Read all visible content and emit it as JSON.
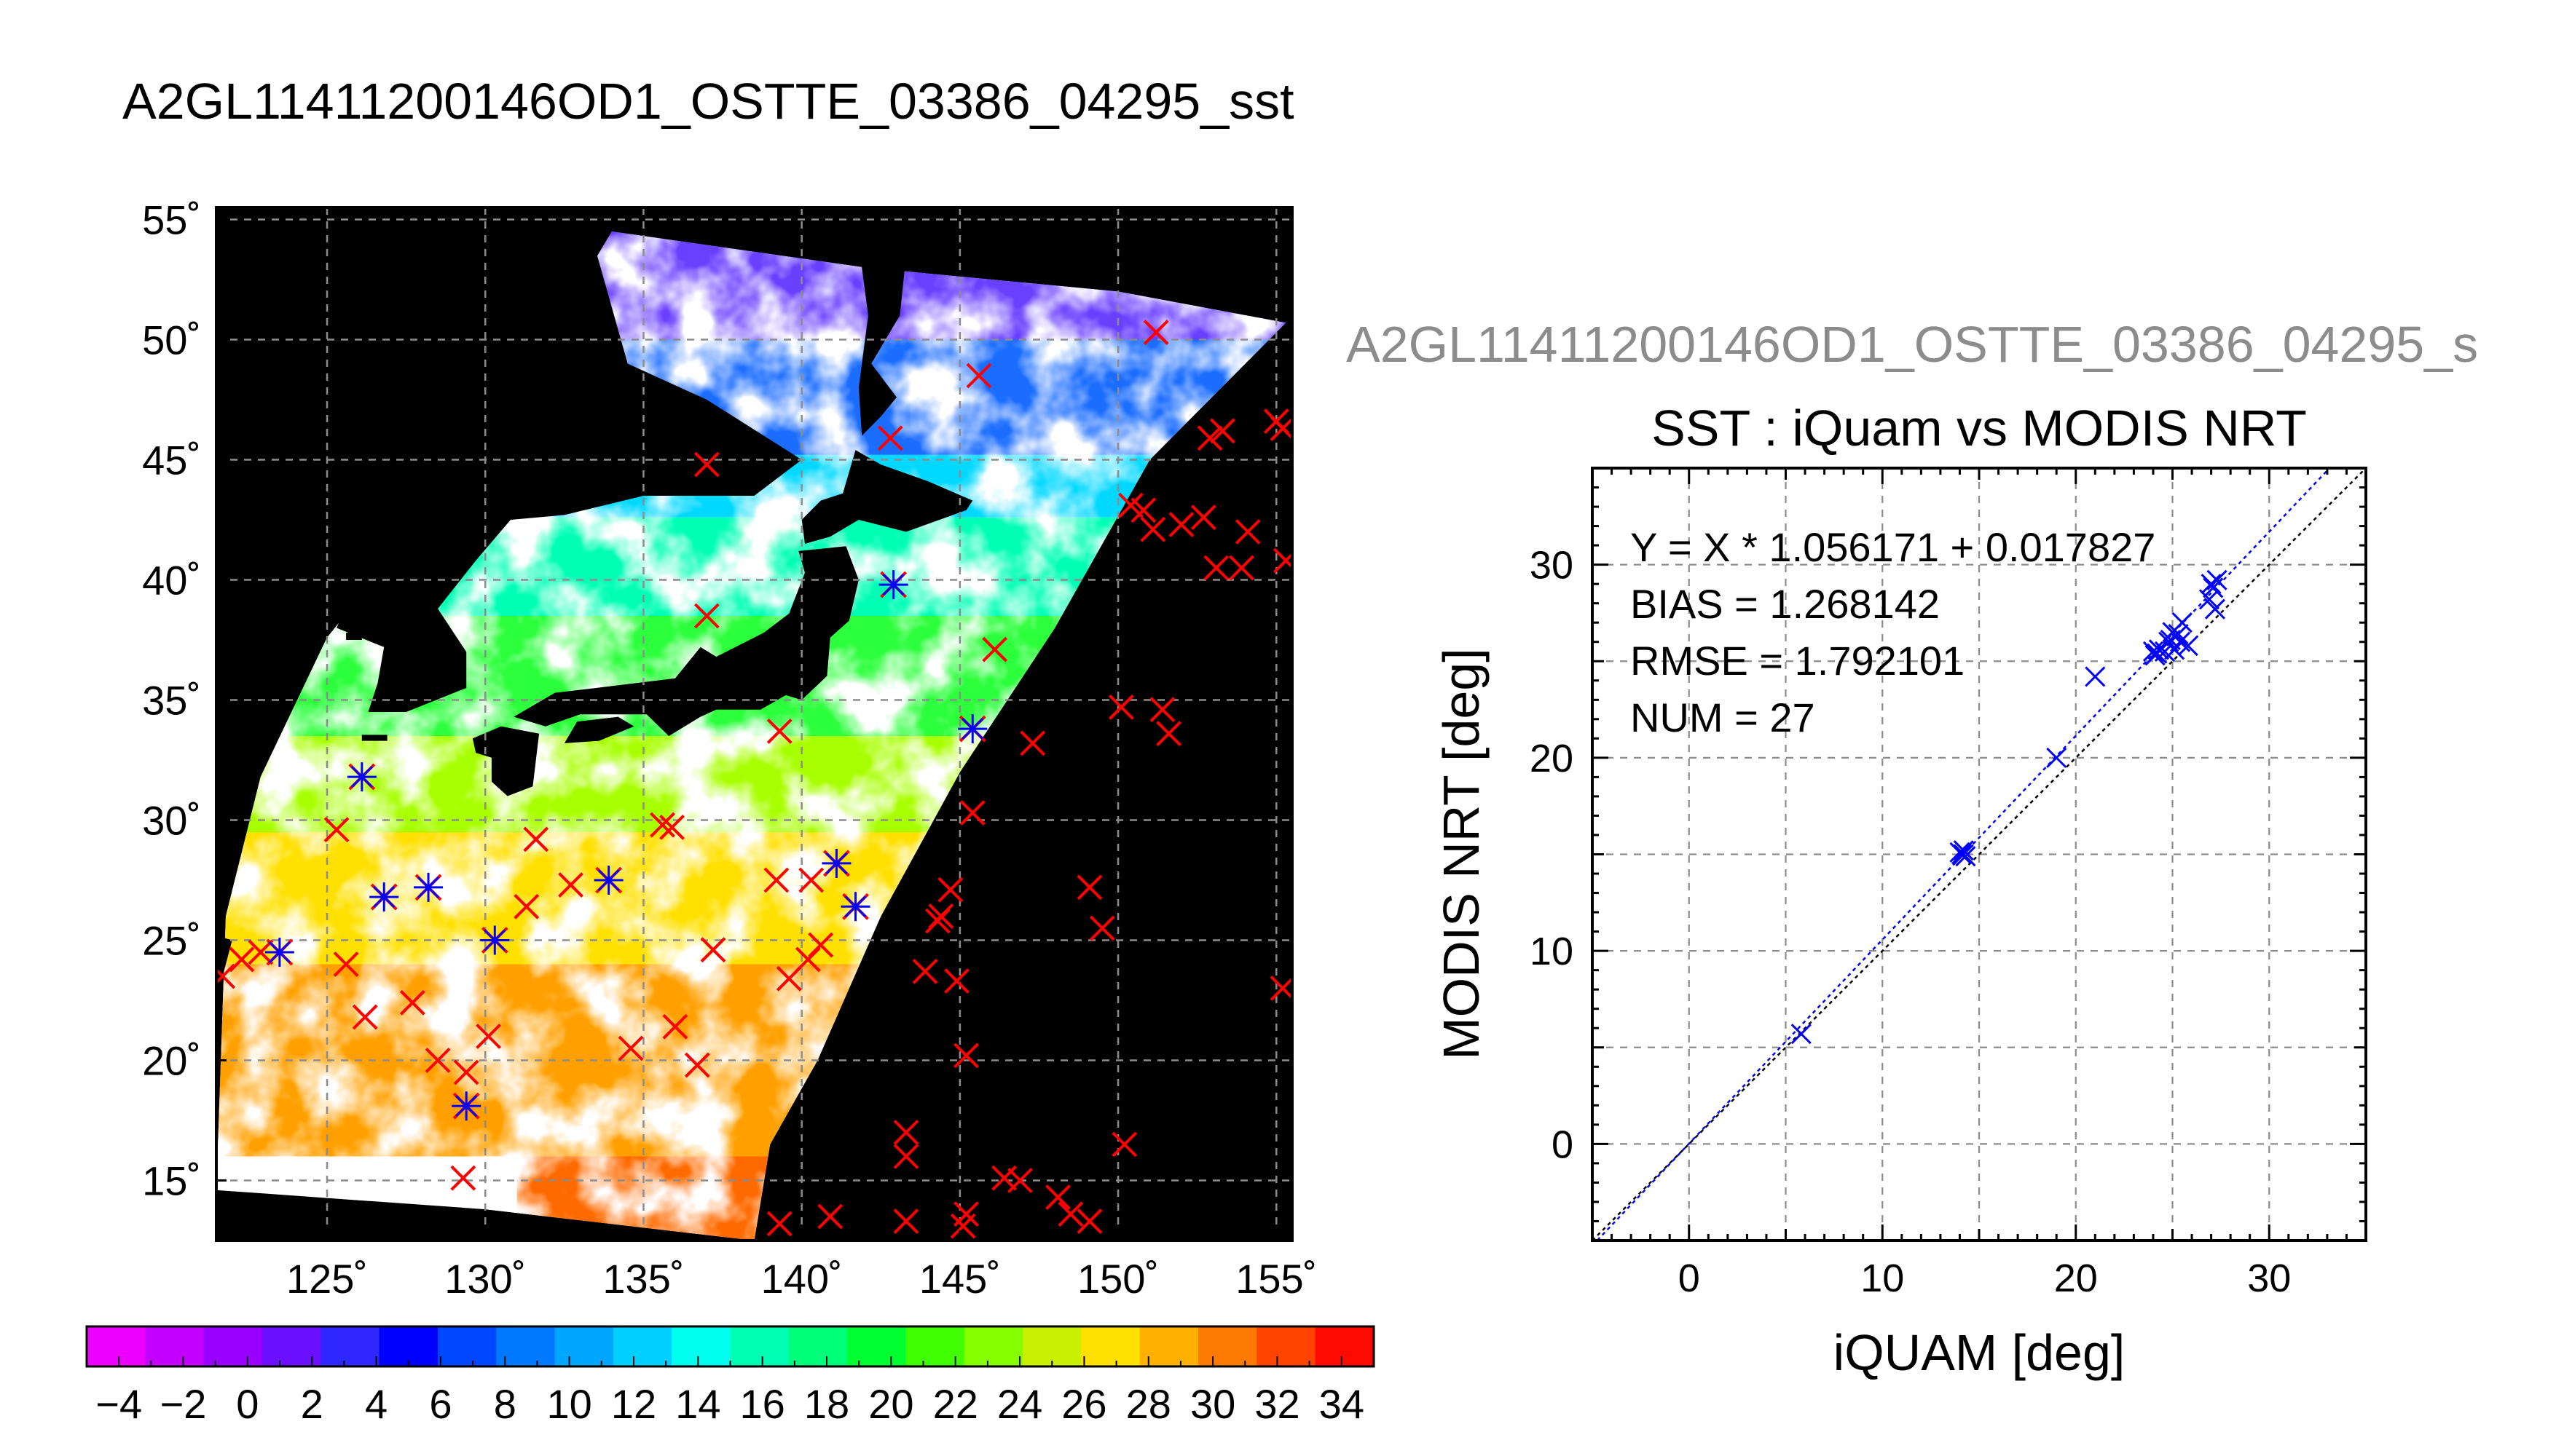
{
  "main_title": "A2GL11411200146OD1_OSTTE_03386_04295_sst",
  "scatter_title_gray": "A2GL11411200146OD1_OSTTE_03386_04295_s",
  "colors": {
    "land": "#000000",
    "background": "#ffffff",
    "cloud": "#ffffff",
    "marker_red": "#ff0000",
    "marker_blue": "#0000ff",
    "gray_title": "#8c8c8c"
  },
  "colorbar": {
    "min": -5,
    "max": 35,
    "step": 2,
    "tick_labels": [
      "−4",
      "−2",
      "0",
      "2",
      "4",
      "6",
      "8",
      "10",
      "12",
      "14",
      "16",
      "18",
      "20",
      "22",
      "24",
      "26",
      "28",
      "30",
      "32",
      "34"
    ],
    "colors": [
      "#ee00ff",
      "#c400ff",
      "#9a00ff",
      "#6a10ff",
      "#2e28ff",
      "#0000ff",
      "#0048ff",
      "#0078ff",
      "#00a6ff",
      "#00d0ff",
      "#00ffee",
      "#00ffb4",
      "#00ff78",
      "#00ff30",
      "#40ff00",
      "#86ff00",
      "#c8f000",
      "#ffe000",
      "#ffb000",
      "#ff7a00",
      "#ff4400",
      "#ff0a00"
    ]
  },
  "chart_data": [
    {
      "type": "map",
      "title": "A2GL11411200146OD1_OSTTE_03386_04295_sst",
      "variable": "sst",
      "lon_range": [
        121.5,
        155.5
      ],
      "lat_range": [
        12.5,
        55.5
      ],
      "x_tick_labels": [
        "125˚",
        "130˚",
        "135˚",
        "140˚",
        "145˚",
        "150˚",
        "155˚"
      ],
      "y_tick_labels": [
        "55˚",
        "50˚",
        "45˚",
        "40˚",
        "35˚",
        "30˚",
        "25˚",
        "20˚",
        "15˚"
      ],
      "x_tick_values": [
        125,
        130,
        135,
        140,
        145,
        150,
        155
      ],
      "y_tick_values": [
        55,
        50,
        45,
        40,
        35,
        30,
        25,
        20,
        15
      ],
      "grid": true,
      "swath": [
        [
          121.5,
          14.6
        ],
        [
          121.8,
          26
        ],
        [
          122.9,
          31.8
        ],
        [
          125,
          37.6
        ],
        [
          127.4,
          41.5
        ],
        [
          131.5,
          49
        ],
        [
          134,
          54.5
        ],
        [
          142,
          53
        ],
        [
          150,
          52
        ],
        [
          155.3,
          50.7
        ],
        [
          151,
          45
        ],
        [
          148,
          38
        ],
        [
          145,
          32
        ],
        [
          142.5,
          26
        ],
        [
          140.5,
          20
        ],
        [
          139,
          16.5
        ],
        [
          138.5,
          12.5
        ],
        [
          130,
          13.8
        ]
      ],
      "iquam_points_red": [
        [
          121.7,
          23.5
        ],
        [
          122.3,
          24.2
        ],
        [
          122.9,
          24.5
        ],
        [
          125.3,
          29.6
        ],
        [
          125.6,
          24
        ],
        [
          126.2,
          21.8
        ],
        [
          127.7,
          22.4
        ],
        [
          128.5,
          20
        ],
        [
          129.4,
          19.5
        ],
        [
          129.3,
          15.1
        ],
        [
          130.1,
          21
        ],
        [
          131.3,
          26.4
        ],
        [
          131.6,
          29.2
        ],
        [
          132.7,
          27.3
        ],
        [
          134.6,
          20.5
        ],
        [
          135.6,
          29.8
        ],
        [
          135.9,
          29.7
        ],
        [
          136,
          21.4
        ],
        [
          136.7,
          19.8
        ],
        [
          137.2,
          24.6
        ],
        [
          137,
          38.5
        ],
        [
          137,
          44.8
        ],
        [
          139.3,
          33.7
        ],
        [
          139.2,
          27.5
        ],
        [
          139.6,
          23.4
        ],
        [
          140.2,
          24.2
        ],
        [
          140.6,
          24.8
        ],
        [
          140.3,
          27.5
        ],
        [
          140.9,
          13.5
        ],
        [
          139.3,
          13.2
        ],
        [
          142.8,
          45.9
        ],
        [
          143.9,
          23.7
        ],
        [
          144.3,
          25.8
        ],
        [
          144.4,
          26
        ],
        [
          144.9,
          23.3
        ],
        [
          144.7,
          27.1
        ],
        [
          145.2,
          20.2
        ],
        [
          143.3,
          17
        ],
        [
          143.3,
          16
        ],
        [
          143.3,
          13.3
        ],
        [
          145.2,
          13.6
        ],
        [
          145.1,
          13.1
        ],
        [
          145.4,
          30.3
        ],
        [
          145.6,
          48.5
        ],
        [
          146.1,
          37.1
        ],
        [
          146.4,
          15.1
        ],
        [
          146.9,
          15
        ],
        [
          147.3,
          33.2
        ],
        [
          148.1,
          14.3
        ],
        [
          148.5,
          13.6
        ],
        [
          149.1,
          13.3
        ],
        [
          149.1,
          27.2
        ],
        [
          149.5,
          25.5
        ],
        [
          150.2,
          16.5
        ],
        [
          150.1,
          34.7
        ],
        [
          150.4,
          43.1
        ],
        [
          150.8,
          42.9
        ],
        [
          151.1,
          42.1
        ],
        [
          151.2,
          50.3
        ],
        [
          151.4,
          34.6
        ],
        [
          151.6,
          33.6
        ],
        [
          152,
          42.3
        ],
        [
          152.7,
          42.6
        ],
        [
          152.9,
          45.9
        ],
        [
          153.3,
          46.2
        ],
        [
          153.1,
          40.5
        ],
        [
          153.9,
          40.5
        ],
        [
          154.1,
          42
        ],
        [
          155,
          46.6
        ],
        [
          155.2,
          46.3
        ],
        [
          155.3,
          40.8
        ],
        [
          155.2,
          23
        ]
      ],
      "matched_points_red_blue": [
        [
          123.5,
          24.5
        ],
        [
          126.1,
          31.8
        ],
        [
          126.8,
          26.8
        ],
        [
          128.2,
          27.2
        ],
        [
          129.4,
          18.1
        ],
        [
          130.3,
          25
        ],
        [
          133.9,
          27.5
        ],
        [
          142.9,
          39.8
        ],
        [
          141.1,
          28.2
        ],
        [
          141.7,
          26.4
        ],
        [
          145.4,
          33.8
        ]
      ]
    },
    {
      "type": "scatter",
      "title": "SST : iQuam vs MODIS NRT",
      "xlabel": "iQUAM [deg]",
      "ylabel": "MODIS NRT [deg]",
      "xlim": [
        -5,
        35
      ],
      "ylim": [
        -5,
        35
      ],
      "x_ticks": [
        0,
        10,
        20,
        30
      ],
      "y_ticks": [
        0,
        10,
        20,
        30
      ],
      "x_tick_labels": [
        "0",
        "10",
        "20",
        "30"
      ],
      "y_tick_labels": [
        "0",
        "10",
        "20",
        "30"
      ],
      "grid": true,
      "annotations": [
        "Y = X * 1.056171 + 0.017827",
        "BIAS = 1.268142",
        "RMSE = 1.792101",
        "NUM = 27"
      ],
      "fit": {
        "slope": 1.056171,
        "intercept": 0.017827,
        "line": "blue dashed"
      },
      "identity_line": "black dashed",
      "x": [
        5.8,
        14.1,
        14.2,
        14.3,
        14.0,
        19.0,
        21.0,
        24.0,
        24.1,
        24.3,
        24.2,
        24.8,
        25.0,
        25.2,
        24.9,
        25.5,
        25.4,
        25.8,
        25.1,
        27.0,
        27.1,
        27.2,
        26.9,
        24.6,
        25.3,
        27.3,
        14.2
      ],
      "y": [
        5.7,
        15.0,
        15.2,
        14.9,
        15.1,
        20.0,
        24.2,
        25.5,
        25.3,
        25.6,
        25.4,
        26.0,
        26.5,
        26.3,
        26.1,
        27.0,
        26.0,
        25.8,
        25.6,
        29.0,
        28.8,
        27.7,
        28.2,
        25.5,
        26.4,
        29.2,
        15.0
      ]
    }
  ]
}
